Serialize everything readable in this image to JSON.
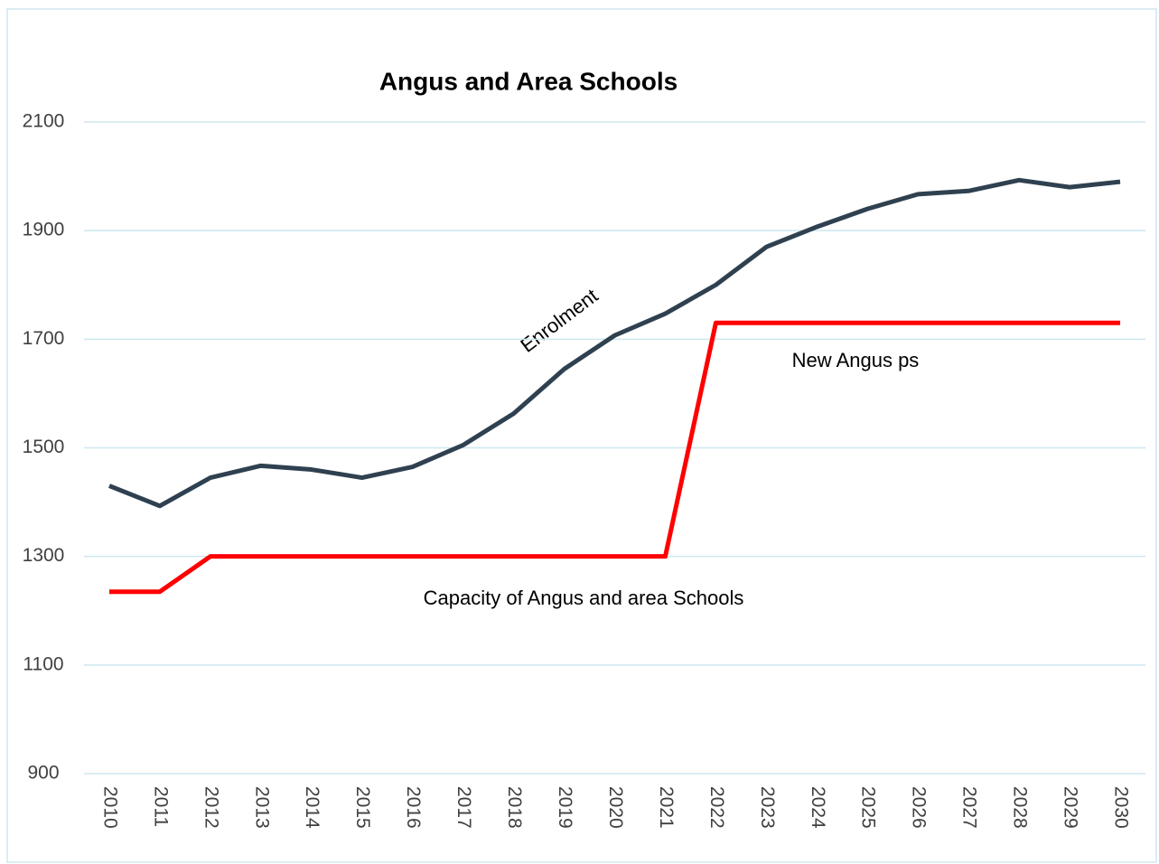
{
  "chart_data": {
    "type": "line",
    "title": "Angus and Area Schools",
    "categories": [
      "2010",
      "2011",
      "2012",
      "2013",
      "2014",
      "2015",
      "2016",
      "2017",
      "2018",
      "2019",
      "2020",
      "2021",
      "2022",
      "2023",
      "2024",
      "2025",
      "2026",
      "2027",
      "2028",
      "2029",
      "2030"
    ],
    "series": [
      {
        "name": "Enrolment",
        "color": "#2f4150",
        "values": [
          1430,
          1393,
          1445,
          1467,
          1460,
          1445,
          1465,
          1505,
          1563,
          1645,
          1707,
          1747,
          1800,
          1870,
          1907,
          1940,
          1967,
          1973,
          1993,
          1980,
          1990
        ]
      },
      {
        "name": "Capacity of Angus and area Schools",
        "color": "#ff0000",
        "values": [
          1235,
          1235,
          1300,
          1300,
          1300,
          1300,
          1300,
          1300,
          1300,
          1300,
          1300,
          1300,
          1730,
          1730,
          1730,
          1730,
          1730,
          1730,
          1730,
          1730,
          1730
        ]
      }
    ],
    "annotations": [
      "New Angus ps"
    ],
    "ylim": [
      900,
      2100
    ],
    "yticks": [
      900,
      1100,
      1300,
      1500,
      1700,
      1900,
      2100
    ],
    "grid": true
  }
}
